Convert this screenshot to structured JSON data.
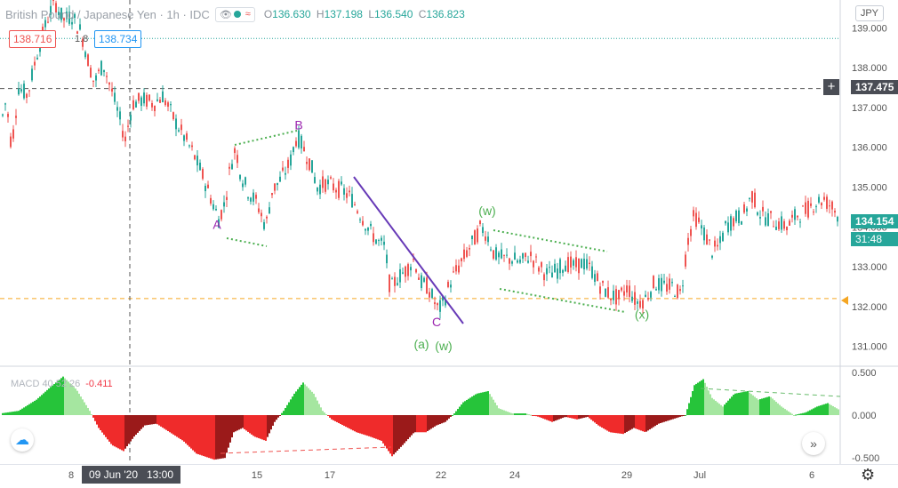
{
  "header": {
    "symbol": "British Pound / Japanese Yen · 1h · IDC",
    "open_label": "O",
    "open": "136.630",
    "high_label": "H",
    "high": "137.198",
    "low_label": "L",
    "low": "136.540",
    "close_label": "C",
    "close": "136.823"
  },
  "sell_price": "138.716",
  "spread": "1.8",
  "buy_price": "138.734",
  "currency": "JPY",
  "crosshair_price": "137.475",
  "last_price": "134.154",
  "countdown": "31:48",
  "crosshair_date": "09 Jun '20   13:00",
  "macd_label": "MACD 40 52 26",
  "macd_value": "-0.411",
  "colors": {
    "up": "#26a69a",
    "down": "#ef5350",
    "label_purple": "#9c27b0",
    "label_green": "#4caf50",
    "trendline": "#673ab7",
    "hline": "#f5a623"
  },
  "chart_data": {
    "type": "candlestick",
    "price_axis": {
      "ticks": [
        "139.000",
        "138.000",
        "137.000",
        "136.000",
        "135.000",
        "134.000",
        "133.000",
        "132.000",
        "131.000"
      ],
      "range": [
        130.5,
        139.7
      ]
    },
    "macd_axis": {
      "ticks": [
        "0.500",
        "0.000",
        "-0.500"
      ],
      "range": [
        -0.55,
        0.55
      ]
    },
    "time_axis": [
      "8",
      "15",
      "17",
      "22",
      "24",
      "29",
      "Jul",
      "6"
    ],
    "ohlc_path": [
      [
        0,
        136.6
      ],
      [
        6,
        137.2
      ],
      [
        12,
        136.0
      ],
      [
        20,
        137.5
      ],
      [
        30,
        137.3
      ],
      [
        40,
        138.3
      ],
      [
        48,
        138.9
      ],
      [
        55,
        139.4
      ],
      [
        62,
        139.6
      ],
      [
        70,
        139.2
      ],
      [
        80,
        139.3
      ],
      [
        90,
        138.9
      ],
      [
        98,
        138.2
      ],
      [
        105,
        137.6
      ],
      [
        115,
        138.1
      ],
      [
        125,
        137.4
      ],
      [
        135,
        136.6
      ],
      [
        140,
        136.2
      ],
      [
        148,
        137.1
      ],
      [
        160,
        137.2
      ],
      [
        172,
        137.1
      ],
      [
        182,
        137.3
      ],
      [
        195,
        136.7
      ],
      [
        205,
        136.3
      ],
      [
        215,
        135.9
      ],
      [
        225,
        135.4
      ],
      [
        235,
        134.8
      ],
      [
        245,
        134.2
      ],
      [
        252,
        134.6
      ],
      [
        258,
        135.5
      ],
      [
        264,
        136.0
      ],
      [
        270,
        135.3
      ],
      [
        278,
        134.9
      ],
      [
        288,
        134.6
      ],
      [
        298,
        134.0
      ],
      [
        305,
        134.9
      ],
      [
        315,
        135.2
      ],
      [
        325,
        135.6
      ],
      [
        333,
        136.3
      ],
      [
        340,
        136.0
      ],
      [
        348,
        135.6
      ],
      [
        356,
        135.0
      ],
      [
        365,
        135.1
      ],
      [
        375,
        135.0
      ],
      [
        385,
        134.9
      ],
      [
        395,
        134.7
      ],
      [
        405,
        134.3
      ],
      [
        415,
        133.9
      ],
      [
        425,
        133.6
      ],
      [
        432,
        133.5
      ],
      [
        438,
        132.4
      ],
      [
        445,
        132.7
      ],
      [
        455,
        132.9
      ],
      [
        465,
        133.2
      ],
      [
        472,
        132.6
      ],
      [
        480,
        132.5
      ],
      [
        486,
        132.2
      ],
      [
        492,
        131.9
      ],
      [
        498,
        132.1
      ],
      [
        505,
        132.6
      ],
      [
        515,
        133.0
      ],
      [
        525,
        133.4
      ],
      [
        533,
        133.7
      ],
      [
        540,
        134.0
      ],
      [
        547,
        133.8
      ],
      [
        555,
        133.3
      ],
      [
        565,
        133.2
      ],
      [
        575,
        133.2
      ],
      [
        585,
        133.1
      ],
      [
        595,
        133.3
      ],
      [
        605,
        133.0
      ],
      [
        615,
        132.8
      ],
      [
        625,
        132.9
      ],
      [
        635,
        133.1
      ],
      [
        645,
        133.0
      ],
      [
        655,
        133.1
      ],
      [
        665,
        132.9
      ],
      [
        675,
        132.5
      ],
      [
        685,
        132.3
      ],
      [
        695,
        132.2
      ],
      [
        705,
        132.5
      ],
      [
        715,
        132.1
      ],
      [
        725,
        132.2
      ],
      [
        735,
        132.6
      ],
      [
        745,
        132.5
      ],
      [
        755,
        132.5
      ],
      [
        765,
        132.3
      ],
      [
        772,
        133.6
      ],
      [
        780,
        134.3
      ],
      [
        790,
        133.9
      ],
      [
        800,
        133.4
      ],
      [
        808,
        133.5
      ],
      [
        815,
        134.0
      ],
      [
        825,
        134.2
      ],
      [
        835,
        134.3
      ],
      [
        845,
        134.8
      ],
      [
        855,
        134.3
      ],
      [
        865,
        134.2
      ],
      [
        875,
        134.1
      ],
      [
        885,
        134.0
      ],
      [
        895,
        134.3
      ],
      [
        905,
        134.4
      ],
      [
        915,
        134.6
      ],
      [
        925,
        134.7
      ],
      [
        935,
        134.5
      ],
      [
        945,
        134.2
      ]
    ],
    "annotations": [
      {
        "text": "A",
        "color": "purple",
        "price": 133.95
      },
      {
        "text": "B",
        "color": "purple",
        "price": 136.45
      },
      {
        "text": "C",
        "color": "purple",
        "price": 131.5
      },
      {
        "text": "(a)",
        "color": "green",
        "price": 130.95
      },
      {
        "text": "(w)",
        "color": "green",
        "price": 130.9
      },
      {
        "text": "(w)",
        "color": "green",
        "price": 134.3
      },
      {
        "text": "(x)",
        "color": "green",
        "price": 131.7
      }
    ],
    "hlines": [
      {
        "price": 138.734,
        "style": "dotted",
        "color": "teal"
      },
      {
        "price": 137.475,
        "style": "dashed",
        "color": "gray"
      },
      {
        "price": 132.2,
        "style": "dashed",
        "color": "orange"
      }
    ],
    "macd_path": [
      [
        0,
        0.02
      ],
      [
        20,
        0.05
      ],
      [
        40,
        0.18
      ],
      [
        55,
        0.32
      ],
      [
        70,
        0.45
      ],
      [
        85,
        0.3
      ],
      [
        100,
        0.05
      ],
      [
        110,
        -0.15
      ],
      [
        125,
        -0.35
      ],
      [
        138,
        -0.42
      ],
      [
        150,
        -0.25
      ],
      [
        162,
        -0.12
      ],
      [
        175,
        -0.1
      ],
      [
        190,
        -0.2
      ],
      [
        205,
        -0.3
      ],
      [
        220,
        -0.45
      ],
      [
        240,
        -0.52
      ],
      [
        252,
        -0.5
      ],
      [
        262,
        -0.2
      ],
      [
        272,
        -0.15
      ],
      [
        285,
        -0.25
      ],
      [
        298,
        -0.3
      ],
      [
        308,
        -0.08
      ],
      [
        318,
        0.05
      ],
      [
        330,
        0.25
      ],
      [
        340,
        0.38
      ],
      [
        352,
        0.25
      ],
      [
        362,
        0.05
      ],
      [
        372,
        -0.05
      ],
      [
        385,
        -0.12
      ],
      [
        400,
        -0.2
      ],
      [
        415,
        -0.25
      ],
      [
        428,
        -0.3
      ],
      [
        440,
        -0.48
      ],
      [
        452,
        -0.35
      ],
      [
        465,
        -0.2
      ],
      [
        478,
        -0.2
      ],
      [
        490,
        -0.12
      ],
      [
        500,
        -0.08
      ],
      [
        510,
        0.02
      ],
      [
        520,
        0.15
      ],
      [
        535,
        0.25
      ],
      [
        548,
        0.28
      ],
      [
        560,
        0.08
      ],
      [
        575,
        0.02
      ],
      [
        590,
        0.02
      ],
      [
        605,
        -0.02
      ],
      [
        620,
        -0.08
      ],
      [
        635,
        -0.02
      ],
      [
        648,
        -0.05
      ],
      [
        660,
        -0.02
      ],
      [
        672,
        -0.12
      ],
      [
        685,
        -0.2
      ],
      [
        700,
        -0.22
      ],
      [
        712,
        -0.15
      ],
      [
        725,
        -0.2
      ],
      [
        740,
        -0.1
      ],
      [
        755,
        -0.05
      ],
      [
        770,
        0.0
      ],
      [
        780,
        0.35
      ],
      [
        790,
        0.42
      ],
      [
        800,
        0.2
      ],
      [
        812,
        0.1
      ],
      [
        825,
        0.25
      ],
      [
        840,
        0.28
      ],
      [
        852,
        0.18
      ],
      [
        865,
        0.22
      ],
      [
        878,
        0.1
      ],
      [
        892,
        0.0
      ],
      [
        905,
        0.03
      ],
      [
        918,
        0.1
      ],
      [
        930,
        0.14
      ],
      [
        945,
        0.05
      ]
    ]
  }
}
